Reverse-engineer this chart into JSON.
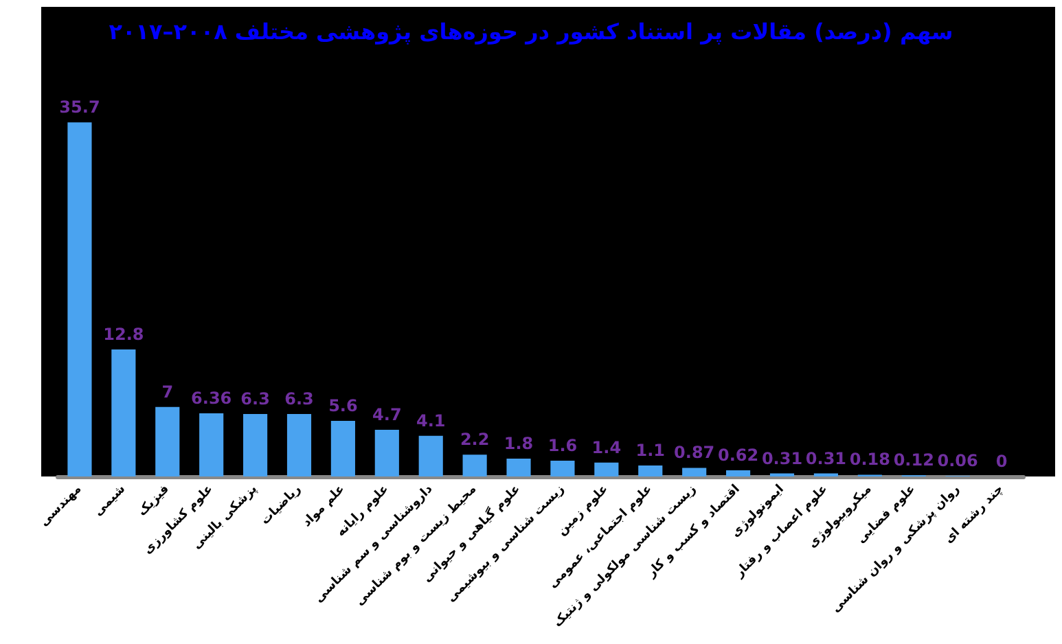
{
  "chart_data": {
    "type": "bar",
    "title": "سهم (درصد) مقالات پر استناد کشور در حوزه‌های پژوهشی مختلف ۲۰۰۸–۲۰۱۷",
    "categories": [
      "مهندسی",
      "شیمی",
      "فیزیک",
      "علوم کشاورزی",
      "پزشکی بالینی",
      "ریاضیات",
      "علم مواد",
      "علوم رایانه",
      "داروشناسی و سم شناسی",
      "محیط زیست و بوم شناسی",
      "علوم گیاهی و حیوانی",
      "زیست شناسی و بیوشیمی",
      "علوم زمین",
      "علوم اجتماعی، عمومی",
      "زیست شناسی مولکولی و ژنتیک",
      "اقتصاد و کسب و کار",
      "ایمونولوژی",
      "علوم اعصاب و رفتار",
      "میکروبیولوژی",
      "علوم فضایی",
      "روان پزشکی و روان شناسی",
      "چند رشته ای"
    ],
    "values": [
      35.7,
      12.8,
      7,
      6.36,
      6.3,
      6.3,
      5.6,
      4.7,
      4.1,
      2.2,
      1.8,
      1.6,
      1.4,
      1.1,
      0.87,
      0.62,
      0.31,
      0.31,
      0.18,
      0.12,
      0.06,
      0
    ],
    "color": "#4aa3f0",
    "data_labels": true
  }
}
